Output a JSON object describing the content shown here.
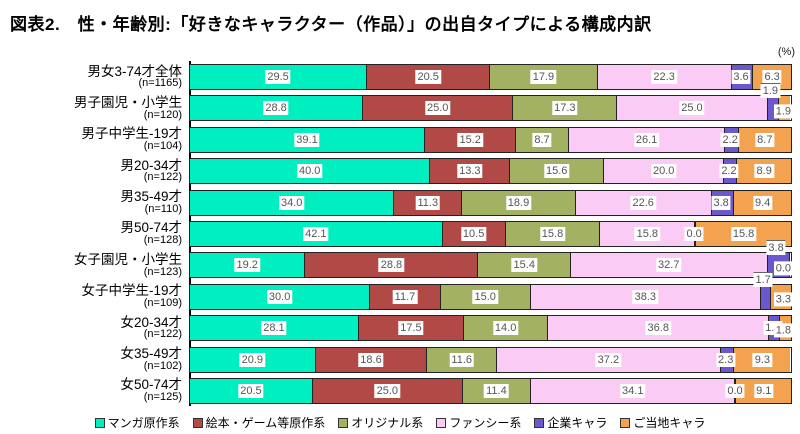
{
  "page": {
    "title": "図表2.　性・年齢別:「好きなキャラクター（作品）」の出自タイプによる構成内訳",
    "unit_label": "(%)"
  },
  "chart_data": {
    "type": "bar",
    "stacked": true,
    "orientation": "horizontal",
    "title": "図表2.　性・年齢別:「好きなキャラクター（作品）」の出自タイプによる構成内訳",
    "unit_label": "(%)",
    "xlim": [
      0,
      100
    ],
    "grid": false,
    "legend_position": "bottom",
    "categories": [
      "男女3-74才全体",
      "男子園児・小学生",
      "男子中学生-19才",
      "男20-34才",
      "男35-49才",
      "男50-74才",
      "女子園児・小学生",
      "女子中学生-19才",
      "女20-34才",
      "女35-49才",
      "女50-74才"
    ],
    "category_n": [
      "(n=1165)",
      "(n=120)",
      "(n=104)",
      "(n=122)",
      "(n=110)",
      "(n=128)",
      "(n=123)",
      "(n=109)",
      "(n=122)",
      "(n=102)",
      "(n=125)"
    ],
    "series": [
      {
        "name": "マンガ原作系",
        "key": "manga",
        "color": "#00EFC0",
        "values": [
          29.5,
          28.8,
          39.1,
          40.0,
          34.0,
          42.1,
          19.2,
          30.0,
          28.1,
          20.9,
          20.5
        ]
      },
      {
        "name": "絵本・ゲーム等原作系",
        "key": "ehon-game",
        "color": "#B14A47",
        "values": [
          20.5,
          25.0,
          15.2,
          13.3,
          11.3,
          10.5,
          28.8,
          11.7,
          17.5,
          18.6,
          25.0
        ]
      },
      {
        "name": "オリジナル系",
        "key": "original",
        "color": "#A2B162",
        "values": [
          17.9,
          17.3,
          8.7,
          15.6,
          18.9,
          15.8,
          15.4,
          15.0,
          14.0,
          11.6,
          11.4
        ]
      },
      {
        "name": "ファンシー系",
        "key": "fancy",
        "color": "#FACCF5",
        "values": [
          22.3,
          25.0,
          26.1,
          20.0,
          22.6,
          15.8,
          32.7,
          38.3,
          36.8,
          37.2,
          34.1
        ]
      },
      {
        "name": "企業キャラ",
        "key": "kigyo",
        "color": "#6A58CC",
        "values": [
          3.6,
          1.9,
          2.2,
          2.2,
          3.8,
          0.0,
          3.8,
          1.7,
          1.8,
          2.3,
          0.0
        ]
      },
      {
        "name": "ご当地キャラ",
        "key": "gotochi",
        "color": "#F3A350",
        "values": [
          6.3,
          1.9,
          8.7,
          8.9,
          9.4,
          15.8,
          0.0,
          3.3,
          1.8,
          9.3,
          9.1
        ]
      }
    ],
    "label_layout": [
      {
        "kigyo": "boundary",
        "gotochi": "inside"
      },
      {
        "kigyo": "above",
        "gotochi": "outside"
      },
      {
        "kigyo": "boundary",
        "gotochi": "inside"
      },
      {
        "kigyo": "boundary",
        "gotochi": "inside"
      },
      {
        "kigyo": "boundary",
        "gotochi": "inside"
      },
      {
        "kigyo": "boundary",
        "gotochi": "inside"
      },
      {
        "kigyo": "above",
        "gotochi": "outside"
      },
      {
        "kigyo": "above",
        "gotochi": "outside"
      },
      {
        "kigyo": "boundary",
        "gotochi": "outside"
      },
      {
        "kigyo": "boundary",
        "gotochi": "inside"
      },
      {
        "kigyo": "boundary",
        "gotochi": "inside"
      }
    ]
  }
}
